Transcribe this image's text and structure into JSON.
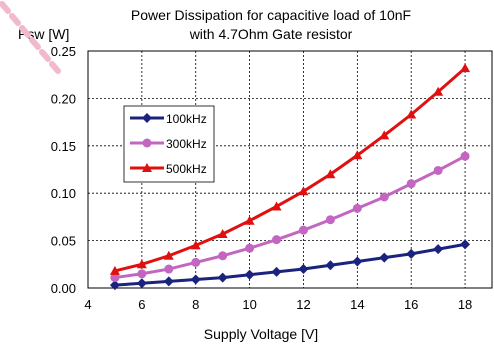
{
  "chart_data": {
    "type": "line",
    "title": [
      "Power Dissipation for capacitive load of 10nF",
      "with 4.7Ohm Gate resistor"
    ],
    "xlabel": "Supply Voltage [V]",
    "ylabel": "Psw [W]",
    "xlim": [
      4,
      19
    ],
    "ylim": [
      0,
      0.25
    ],
    "xticks": [
      4,
      6,
      8,
      10,
      12,
      14,
      16,
      18
    ],
    "xtick_labels": [
      "4",
      "6",
      "8",
      "10",
      "12",
      "14",
      "16",
      "18"
    ],
    "yticks": [
      0,
      0.05,
      0.1,
      0.15,
      0.2,
      0.25
    ],
    "ytick_labels": [
      "0.00",
      "0.05",
      "0.10",
      "0.15",
      "0.20",
      "0.25"
    ],
    "grid": true,
    "legend_position": "upper-left",
    "x": [
      5,
      6,
      7,
      8,
      9,
      10,
      11,
      12,
      13,
      14,
      15,
      16,
      17,
      18
    ],
    "series": [
      {
        "name": "100kHz",
        "color": "#1a237e",
        "marker": "diamond",
        "values": [
          0.003,
          0.005,
          0.007,
          0.009,
          0.011,
          0.014,
          0.017,
          0.02,
          0.024,
          0.028,
          0.032,
          0.036,
          0.041,
          0.046
        ]
      },
      {
        "name": "300kHz",
        "color": "#c266c2",
        "marker": "circle",
        "values": [
          0.011,
          0.015,
          0.02,
          0.027,
          0.034,
          0.042,
          0.051,
          0.061,
          0.072,
          0.084,
          0.096,
          0.11,
          0.124,
          0.139
        ]
      },
      {
        "name": "500kHz",
        "color": "#e01010",
        "marker": "triangle",
        "values": [
          0.018,
          0.025,
          0.034,
          0.045,
          0.057,
          0.071,
          0.086,
          0.102,
          0.12,
          0.14,
          0.161,
          0.183,
          0.207,
          0.232
        ]
      }
    ]
  }
}
